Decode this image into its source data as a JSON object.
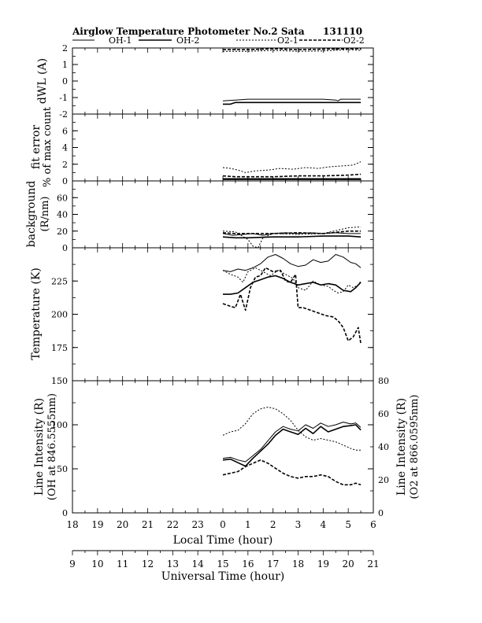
{
  "header": {
    "title": "Airglow Temperature Photometer No.2  Sata",
    "date_code": "131110"
  },
  "legend": [
    {
      "name": "OH-1",
      "dash": "none",
      "width": 1
    },
    {
      "name": "OH-2",
      "dash": "none",
      "width": 1.6
    },
    {
      "name": "O2-1",
      "dash": "2,2",
      "width": 1
    },
    {
      "name": "O2-2",
      "dash": "4,2",
      "width": 1.6
    }
  ],
  "x_axes": {
    "local": {
      "label": "Local Time (hour)",
      "ticks": [
        "18",
        "19",
        "20",
        "21",
        "22",
        "23",
        "0",
        "1",
        "2",
        "3",
        "4",
        "5",
        "6"
      ]
    },
    "universal": {
      "label": "Universal Time (hour)",
      "ticks": [
        "9",
        "10",
        "11",
        "12",
        "13",
        "14",
        "15",
        "16",
        "17",
        "18",
        "19",
        "20",
        "21"
      ]
    }
  },
  "chart_data": [
    {
      "type": "line",
      "name": "dwl",
      "ylabel": "dWL (A)",
      "ylim": [
        -2,
        2
      ],
      "yticks": [
        "-2",
        "-1",
        "0",
        "1",
        "2"
      ],
      "x_unit": "hours after 18 LT",
      "series": [
        {
          "name": "OH-1",
          "x": [
            6.0,
            6.5,
            7.0,
            8.0,
            9.0,
            10.0,
            10.5,
            10.6,
            10.7,
            11.0,
            11.5
          ],
          "y": [
            -1.2,
            -1.15,
            -1.1,
            -1.1,
            -1.1,
            -1.1,
            -1.15,
            -1.2,
            -1.1,
            -1.1,
            -1.1
          ]
        },
        {
          "name": "OH-2",
          "x": [
            6.0,
            6.3,
            6.5,
            8.0,
            10.0,
            11.5
          ],
          "y": [
            -1.4,
            -1.4,
            -1.3,
            -1.3,
            -1.3,
            -1.3
          ]
        },
        {
          "name": "O2-1",
          "x": [
            6.0,
            7.0,
            8.0,
            9.0,
            10.0,
            11.0,
            11.5
          ],
          "y": [
            1.8,
            1.8,
            1.85,
            1.8,
            1.82,
            1.9,
            1.85
          ]
        },
        {
          "name": "O2-2",
          "x": [
            6.0,
            7.0,
            8.0,
            9.0,
            10.0,
            11.0,
            11.5
          ],
          "y": [
            1.9,
            1.9,
            1.95,
            1.9,
            1.93,
            1.95,
            1.95
          ]
        }
      ]
    },
    {
      "type": "line",
      "name": "fit-error",
      "ylabel": "fit error",
      "ylabel2": "% of max count",
      "ylim": [
        0,
        8
      ],
      "yticks": [
        "0",
        "2",
        "4",
        "6"
      ],
      "series": [
        {
          "name": "OH-1",
          "x": [
            6.0,
            7.0,
            8.0,
            9.0,
            10.0,
            11.0,
            11.5
          ],
          "y": [
            0.15,
            0.15,
            0.15,
            0.15,
            0.15,
            0.15,
            0.15
          ]
        },
        {
          "name": "OH-2",
          "x": [
            6.0,
            7.0,
            8.0,
            9.0,
            10.0,
            11.0,
            11.5
          ],
          "y": [
            0.25,
            0.25,
            0.25,
            0.25,
            0.25,
            0.25,
            0.25
          ]
        },
        {
          "name": "O2-1",
          "x": [
            6.0,
            6.3,
            6.6,
            6.9,
            7.3,
            7.8,
            8.3,
            8.8,
            9.3,
            9.8,
            10.3,
            10.8,
            11.2,
            11.5
          ],
          "y": [
            1.6,
            1.5,
            1.3,
            1.0,
            1.2,
            1.3,
            1.5,
            1.4,
            1.6,
            1.5,
            1.7,
            1.8,
            1.9,
            2.3
          ]
        },
        {
          "name": "O2-2",
          "x": [
            6.0,
            6.5,
            7.0,
            8.0,
            9.0,
            10.0,
            11.0,
            11.5
          ],
          "y": [
            0.6,
            0.5,
            0.5,
            0.5,
            0.6,
            0.6,
            0.7,
            0.8
          ]
        }
      ]
    },
    {
      "type": "line",
      "name": "background",
      "ylabel": "background",
      "ylabel2": "(R/nm)",
      "ylim": [
        0,
        80
      ],
      "yticks": [
        "0",
        "20",
        "40",
        "60"
      ],
      "series": [
        {
          "name": "OH-1",
          "x": [
            6.0,
            6.4,
            6.8,
            7.2,
            7.6,
            8.0,
            8.5,
            9.0,
            9.5,
            10.0,
            10.5,
            11.0,
            11.5
          ],
          "y": [
            17,
            15,
            16,
            17,
            15,
            17,
            18,
            17,
            18,
            17,
            18,
            17,
            17
          ]
        },
        {
          "name": "OH-2",
          "x": [
            6.0,
            6.5,
            7.0,
            8.0,
            9.0,
            10.0,
            11.0,
            11.5
          ],
          "y": [
            13,
            12,
            12,
            13,
            13,
            14,
            14,
            13
          ]
        },
        {
          "name": "O2-1",
          "x": [
            6.0,
            6.5,
            7.0,
            7.2,
            7.4,
            7.6,
            8.0,
            9.0,
            10.0,
            11.0,
            11.5
          ],
          "y": [
            20,
            19,
            10,
            2,
            0,
            12,
            17,
            16,
            17,
            24,
            25
          ]
        },
        {
          "name": "O2-2",
          "x": [
            6.0,
            6.5,
            7.0,
            8.0,
            9.0,
            10.0,
            11.0,
            11.5
          ],
          "y": [
            18,
            17,
            17,
            17,
            18,
            17,
            20,
            20
          ]
        }
      ]
    },
    {
      "type": "line",
      "name": "temperature",
      "ylabel": "Temperature (K)",
      "ylim": [
        150,
        250
      ],
      "yticks": [
        "175",
        "200",
        "225"
      ],
      "series": [
        {
          "name": "OH-1",
          "x": [
            6.0,
            6.3,
            6.6,
            6.9,
            7.2,
            7.5,
            7.8,
            8.1,
            8.4,
            8.7,
            9.0,
            9.3,
            9.6,
            9.9,
            10.2,
            10.5,
            10.8,
            11.1,
            11.3,
            11.5
          ],
          "y": [
            233,
            232,
            234,
            233,
            235,
            238,
            243,
            245,
            242,
            238,
            236,
            237,
            241,
            239,
            240,
            245,
            243,
            239,
            238,
            235
          ]
        },
        {
          "name": "OH-2",
          "x": [
            6.0,
            6.3,
            6.6,
            6.9,
            7.2,
            7.5,
            7.8,
            8.1,
            8.4,
            8.7,
            9.0,
            9.3,
            9.6,
            9.9,
            10.2,
            10.5,
            10.8,
            11.1,
            11.3,
            11.5
          ],
          "y": [
            215,
            215,
            216,
            220,
            224,
            226,
            228,
            229,
            227,
            224,
            222,
            223,
            224,
            222,
            223,
            222,
            218,
            217,
            220,
            224
          ]
        },
        {
          "name": "O2-1",
          "x": [
            6.0,
            6.3,
            6.6,
            6.8,
            7.0,
            7.3,
            7.6,
            7.9,
            8.2,
            8.5,
            8.8,
            9.0,
            9.3,
            9.6,
            9.9,
            10.2,
            10.4,
            10.6,
            10.8,
            11.0,
            11.2,
            11.4,
            11.5
          ],
          "y": [
            233,
            230,
            228,
            224,
            232,
            235,
            232,
            229,
            233,
            230,
            227,
            220,
            218,
            225,
            222,
            221,
            218,
            216,
            217,
            222,
            220,
            222,
            225
          ]
        },
        {
          "name": "O2-2",
          "x": [
            6.0,
            6.3,
            6.5,
            6.7,
            6.9,
            7.1,
            7.3,
            7.5,
            7.7,
            8.0,
            8.3,
            8.5,
            8.7,
            8.9,
            9.0,
            9.2,
            9.5,
            9.8,
            10.1,
            10.4,
            10.6,
            10.8,
            11.0,
            11.2,
            11.4,
            11.5
          ],
          "y": [
            208,
            206,
            205,
            215,
            203,
            220,
            228,
            229,
            235,
            232,
            233,
            225,
            224,
            230,
            205,
            205,
            203,
            201,
            199,
            198,
            195,
            190,
            180,
            183,
            190,
            178
          ]
        }
      ]
    },
    {
      "type": "line",
      "name": "line-intensity",
      "ylabel": "Line Intensity (R)",
      "ylabel2": "(OH at 846.5555nm)",
      "ylim": [
        0,
        150
      ],
      "yticks": [
        "0",
        "50",
        "100",
        "150"
      ],
      "y2label": "Line Intensity (R)",
      "y2label2": "(O2 at 866.0595nm)",
      "y2lim": [
        0,
        80
      ],
      "y2ticks": [
        "0",
        "20",
        "40",
        "60",
        "80"
      ],
      "series": [
        {
          "name": "OH-1",
          "axis": "left",
          "x": [
            6.0,
            6.3,
            6.6,
            6.9,
            7.2,
            7.5,
            7.8,
            8.1,
            8.4,
            8.7,
            9.0,
            9.3,
            9.6,
            9.9,
            10.2,
            10.5,
            10.8,
            11.1,
            11.3,
            11.5
          ],
          "y": [
            62,
            63,
            60,
            58,
            65,
            72,
            82,
            92,
            98,
            95,
            93,
            100,
            96,
            102,
            98,
            100,
            103,
            101,
            102,
            97
          ]
        },
        {
          "name": "OH-2",
          "axis": "left",
          "x": [
            6.0,
            6.3,
            6.6,
            6.9,
            7.2,
            7.5,
            7.8,
            8.1,
            8.4,
            8.7,
            9.0,
            9.3,
            9.6,
            9.9,
            10.2,
            10.5,
            10.8,
            11.1,
            11.3,
            11.5
          ],
          "y": [
            60,
            61,
            57,
            53,
            62,
            70,
            78,
            88,
            95,
            92,
            89,
            96,
            90,
            98,
            92,
            95,
            98,
            99,
            100,
            94
          ]
        },
        {
          "name": "O2-1",
          "axis": "right",
          "x": [
            6.0,
            6.3,
            6.6,
            6.9,
            7.2,
            7.5,
            7.8,
            8.1,
            8.4,
            8.7,
            9.0,
            9.3,
            9.6,
            9.9,
            10.2,
            10.5,
            10.8,
            11.1,
            11.3,
            11.5
          ],
          "y": [
            47,
            49,
            50,
            54,
            60,
            63,
            64,
            63,
            60,
            56,
            50,
            46,
            44,
            45,
            44,
            43,
            41,
            39,
            38,
            38
          ]
        },
        {
          "name": "O2-2",
          "axis": "right",
          "x": [
            6.0,
            6.3,
            6.6,
            6.9,
            7.2,
            7.5,
            7.8,
            8.1,
            8.4,
            8.7,
            9.0,
            9.3,
            9.6,
            9.9,
            10.2,
            10.5,
            10.8,
            11.1,
            11.3,
            11.5
          ],
          "y": [
            23,
            24,
            25,
            28,
            30,
            32,
            30,
            27,
            24,
            22,
            21,
            22,
            22,
            23,
            22,
            19,
            17,
            17,
            18,
            17
          ]
        }
      ]
    }
  ]
}
